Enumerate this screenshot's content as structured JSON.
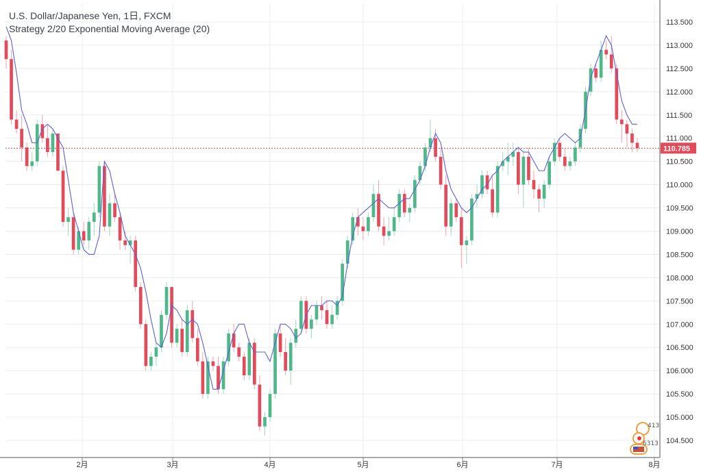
{
  "header": {
    "title": "U.S. Dollar/Japanese Yen, 1日, FXCM",
    "indicator": "Strategy 2/20 Exponential Moving Average (20)"
  },
  "colors": {
    "up": "#4fb78a",
    "down": "#e14b5a",
    "ema": "#5a5fd8",
    "grid": "#e8ecf0",
    "price_line": "#c0404a"
  },
  "badge": {
    "top": "413",
    "bottom": "6313"
  },
  "chart_data": {
    "type": "candlestick",
    "title": "U.S. Dollar/Japanese Yen, 1日, FXCM",
    "series_indicator": "Strategy 2/20 Exponential Moving Average (20)",
    "y_ticks": [
      "104.500",
      "105.000",
      "105.500",
      "106.000",
      "106.500",
      "107.000",
      "107.500",
      "108.000",
      "108.500",
      "109.000",
      "109.500",
      "110.000",
      "110.500",
      "111.000",
      "111.500",
      "112.000",
      "112.500",
      "113.000",
      "113.500"
    ],
    "x_ticks": [
      "2月",
      "3月",
      "4月",
      "5月",
      "6月",
      "7月",
      "8月"
    ],
    "ylim": [
      104.2,
      113.7
    ],
    "last_price": "110.785",
    "last_price_value": 110.785,
    "grid": true,
    "candles": [
      [
        113.1,
        113.2,
        112.5,
        112.7
      ],
      [
        112.7,
        112.9,
        111.3,
        111.4
      ],
      [
        111.4,
        111.6,
        111.1,
        111.2
      ],
      [
        111.2,
        111.5,
        110.5,
        110.8
      ],
      [
        110.8,
        110.9,
        110.3,
        110.4
      ],
      [
        110.4,
        110.7,
        110.3,
        110.5
      ],
      [
        110.5,
        111.4,
        110.4,
        111.3
      ],
      [
        111.3,
        111.5,
        110.9,
        111.0
      ],
      [
        111.0,
        111.3,
        110.6,
        110.7
      ],
      [
        110.7,
        111.2,
        110.6,
        111.1
      ],
      [
        111.1,
        111.1,
        110.3,
        110.3
      ],
      [
        110.3,
        110.4,
        109.1,
        109.2
      ],
      [
        109.2,
        109.5,
        108.9,
        109.3
      ],
      [
        109.3,
        109.4,
        108.5,
        108.6
      ],
      [
        108.6,
        109.1,
        108.5,
        109.0
      ],
      [
        109.0,
        109.2,
        108.7,
        108.8
      ],
      [
        108.8,
        109.3,
        108.6,
        109.2
      ],
      [
        109.2,
        109.6,
        108.9,
        109.4
      ],
      [
        109.4,
        110.5,
        109.3,
        110.4
      ],
      [
        110.4,
        110.5,
        109.0,
        109.1
      ],
      [
        109.1,
        109.8,
        108.9,
        109.6
      ],
      [
        109.6,
        109.8,
        109.2,
        109.3
      ],
      [
        109.3,
        109.4,
        108.6,
        108.8
      ],
      [
        108.8,
        109.0,
        108.6,
        108.7
      ],
      [
        108.7,
        108.9,
        108.3,
        108.8
      ],
      [
        108.8,
        108.9,
        107.7,
        107.8
      ],
      [
        107.8,
        107.9,
        106.9,
        107.0
      ],
      [
        107.0,
        107.1,
        106.0,
        106.1
      ],
      [
        106.1,
        106.4,
        106.0,
        106.3
      ],
      [
        106.3,
        106.6,
        106.1,
        106.5
      ],
      [
        106.5,
        107.3,
        106.4,
        107.2
      ],
      [
        107.2,
        107.9,
        107.1,
        107.8
      ],
      [
        107.8,
        107.8,
        106.5,
        106.6
      ],
      [
        106.6,
        107.0,
        106.5,
        106.9
      ],
      [
        106.9,
        107.1,
        106.3,
        106.4
      ],
      [
        106.4,
        107.4,
        106.3,
        107.3
      ],
      [
        107.3,
        107.5,
        106.6,
        106.7
      ],
      [
        106.7,
        106.9,
        106.1,
        106.2
      ],
      [
        106.2,
        106.4,
        105.4,
        105.5
      ],
      [
        105.5,
        106.3,
        105.4,
        106.2
      ],
      [
        106.2,
        106.3,
        106.0,
        106.1
      ],
      [
        106.1,
        106.3,
        105.5,
        105.6
      ],
      [
        105.6,
        106.3,
        105.5,
        106.2
      ],
      [
        106.2,
        106.9,
        106.1,
        106.8
      ],
      [
        106.8,
        107.0,
        106.4,
        106.5
      ],
      [
        106.5,
        106.6,
        106.2,
        106.3
      ],
      [
        106.3,
        106.4,
        105.8,
        105.9
      ],
      [
        105.9,
        106.7,
        105.8,
        106.6
      ],
      [
        106.6,
        106.7,
        105.6,
        105.7
      ],
      [
        105.7,
        105.9,
        104.7,
        104.8
      ],
      [
        104.8,
        105.1,
        104.6,
        105.0
      ],
      [
        105.0,
        105.6,
        104.9,
        105.5
      ],
      [
        105.5,
        106.9,
        105.4,
        106.8
      ],
      [
        106.8,
        107.0,
        106.3,
        106.4
      ],
      [
        106.4,
        106.7,
        105.9,
        106.0
      ],
      [
        106.0,
        106.7,
        105.7,
        106.6
      ],
      [
        106.6,
        107.1,
        106.5,
        106.9
      ],
      [
        106.9,
        107.6,
        106.8,
        107.5
      ],
      [
        107.5,
        107.6,
        106.8,
        106.9
      ],
      [
        106.9,
        107.2,
        106.7,
        107.1
      ],
      [
        107.1,
        107.5,
        107.0,
        107.4
      ],
      [
        107.4,
        107.6,
        107.1,
        107.3
      ],
      [
        107.3,
        107.5,
        106.9,
        107.0
      ],
      [
        107.0,
        107.4,
        106.9,
        107.2
      ],
      [
        107.2,
        107.6,
        107.1,
        107.5
      ],
      [
        107.5,
        108.4,
        107.4,
        108.3
      ],
      [
        108.3,
        108.9,
        108.2,
        108.8
      ],
      [
        108.8,
        109.4,
        108.7,
        109.3
      ],
      [
        109.3,
        109.5,
        108.9,
        109.1
      ],
      [
        109.1,
        109.3,
        108.8,
        109.0
      ],
      [
        109.0,
        109.4,
        108.9,
        109.3
      ],
      [
        109.3,
        110.0,
        109.2,
        109.8
      ],
      [
        109.8,
        110.1,
        109.0,
        109.1
      ],
      [
        109.1,
        109.3,
        108.7,
        108.9
      ],
      [
        108.9,
        109.3,
        108.8,
        109.0
      ],
      [
        109.0,
        109.5,
        108.9,
        109.3
      ],
      [
        109.3,
        109.9,
        109.2,
        109.8
      ],
      [
        109.8,
        109.9,
        109.3,
        109.4
      ],
      [
        109.4,
        109.6,
        109.2,
        109.5
      ],
      [
        109.5,
        110.2,
        109.4,
        110.1
      ],
      [
        110.1,
        110.5,
        110.0,
        110.4
      ],
      [
        110.4,
        110.9,
        110.3,
        110.8
      ],
      [
        110.8,
        111.4,
        110.7,
        111.0
      ],
      [
        111.0,
        111.2,
        110.5,
        110.6
      ],
      [
        110.6,
        110.8,
        109.9,
        110.0
      ],
      [
        110.0,
        110.2,
        108.9,
        109.1
      ],
      [
        109.1,
        109.7,
        108.9,
        109.6
      ],
      [
        109.6,
        109.7,
        109.2,
        109.3
      ],
      [
        109.3,
        109.5,
        108.2,
        108.7
      ],
      [
        108.7,
        108.9,
        108.3,
        108.8
      ],
      [
        108.8,
        109.8,
        108.7,
        109.7
      ],
      [
        109.7,
        110.0,
        109.5,
        109.8
      ],
      [
        109.8,
        110.3,
        109.7,
        110.2
      ],
      [
        110.2,
        110.3,
        109.8,
        109.9
      ],
      [
        109.9,
        110.2,
        109.3,
        109.4
      ],
      [
        109.4,
        110.5,
        109.3,
        110.4
      ],
      [
        110.4,
        110.7,
        110.3,
        110.5
      ],
      [
        110.5,
        110.9,
        110.2,
        110.6
      ],
      [
        110.6,
        110.9,
        110.4,
        110.7
      ],
      [
        110.7,
        110.8,
        109.8,
        110.0
      ],
      [
        110.0,
        110.7,
        109.5,
        110.6
      ],
      [
        110.6,
        110.8,
        110.0,
        110.1
      ],
      [
        110.1,
        110.3,
        109.7,
        109.9
      ],
      [
        109.9,
        110.0,
        109.4,
        109.7
      ],
      [
        109.7,
        110.1,
        109.5,
        110.0
      ],
      [
        110.0,
        110.6,
        109.9,
        110.5
      ],
      [
        110.5,
        111.0,
        110.4,
        110.9
      ],
      [
        110.9,
        111.0,
        110.5,
        110.6
      ],
      [
        110.6,
        110.8,
        110.3,
        110.4
      ],
      [
        110.4,
        110.6,
        110.3,
        110.5
      ],
      [
        110.5,
        110.9,
        110.4,
        110.8
      ],
      [
        110.8,
        111.3,
        110.7,
        111.2
      ],
      [
        111.2,
        112.1,
        111.1,
        112.0
      ],
      [
        112.0,
        112.6,
        111.9,
        112.5
      ],
      [
        112.5,
        112.6,
        112.2,
        112.3
      ],
      [
        112.3,
        113.1,
        112.2,
        112.9
      ],
      [
        112.9,
        113.1,
        112.7,
        112.8
      ],
      [
        112.8,
        113.2,
        112.4,
        112.5
      ],
      [
        112.5,
        112.6,
        111.3,
        111.4
      ],
      [
        111.4,
        111.6,
        110.9,
        111.3
      ],
      [
        111.3,
        111.4,
        110.8,
        111.1
      ],
      [
        111.1,
        111.2,
        110.7,
        110.9
      ],
      [
        110.9,
        111.0,
        110.7,
        110.785
      ]
    ],
    "ema_high": [
      113.4,
      113.1,
      112.4,
      111.6,
      111.3,
      110.9,
      110.9,
      111.2,
      111.3,
      111.2,
      111.0,
      110.8,
      110.1,
      109.4,
      109.0,
      108.6,
      108.5,
      108.5,
      108.9,
      110.5,
      110.3,
      109.8,
      109.4,
      108.9,
      108.7,
      108.5,
      108.2,
      107.7,
      107.1,
      106.6,
      106.5,
      106.8,
      107.4,
      107.3,
      107.1,
      107.0,
      107.1,
      107.0,
      106.6,
      106.1,
      105.6,
      105.6,
      106.0,
      106.4,
      106.8,
      107.0,
      107.0,
      106.6,
      106.4,
      106.4,
      106.4,
      106.2,
      106.6,
      107.0,
      107.0,
      106.9,
      106.7,
      106.8,
      107.2,
      107.4,
      107.4,
      107.4,
      107.5,
      107.5,
      107.4,
      107.6,
      108.3,
      108.9,
      109.3,
      109.4,
      109.5,
      109.6,
      109.7,
      109.6,
      109.5,
      109.5,
      109.6,
      109.7,
      109.7,
      109.9,
      110.1,
      110.4,
      110.8,
      111.1,
      110.9,
      110.3,
      109.9,
      109.7,
      109.5,
      109.4,
      109.5,
      109.7,
      109.9,
      110.0,
      110.2,
      110.3,
      110.5,
      110.6,
      110.7,
      110.8,
      110.7,
      110.7,
      110.5,
      110.3,
      110.3,
      110.6,
      110.8,
      111.0,
      111.1,
      111.0,
      110.9,
      111.0,
      111.6,
      112.3,
      112.6,
      112.9,
      113.2,
      113.0,
      112.4,
      111.8,
      111.5,
      111.3,
      111.3
    ]
  }
}
